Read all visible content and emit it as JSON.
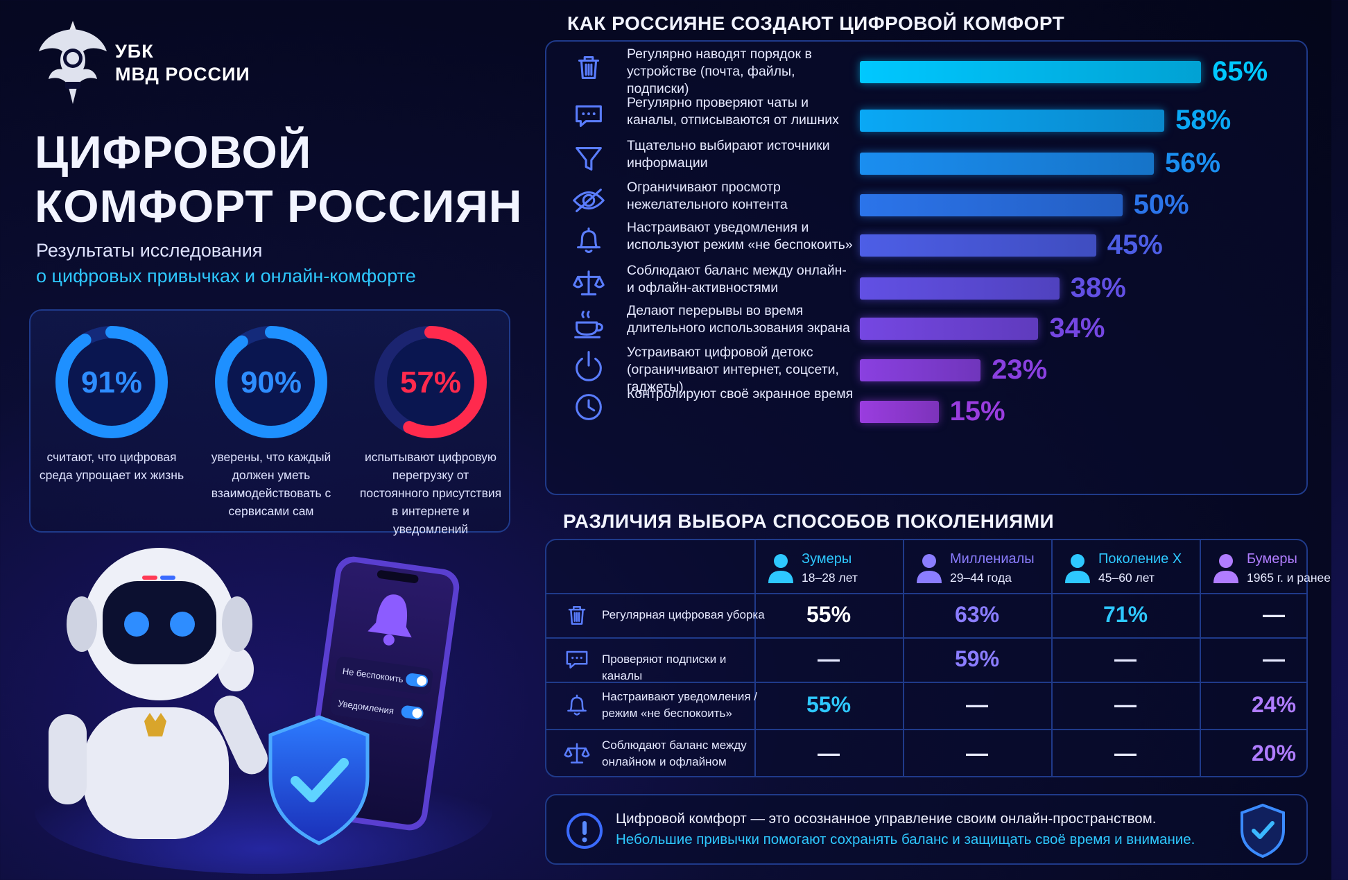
{
  "header": {
    "org_line1": "УБК",
    "org_line2": "МВД РОССИИ",
    "title": "ЦИФРОВОЙ КОМФОРТ РОССИЯН",
    "subtitle_line1": "Результаты исследования",
    "subtitle_line2": "о цифровых привычках и онлайн-комфорте"
  },
  "stats": [
    {
      "value": 91,
      "label": "91%",
      "text": "считают, что цифровая среда упрощает их жизнь",
      "color": "#1e90ff"
    },
    {
      "value": 90,
      "label": "90%",
      "text": "уверены, что каждый должен уметь взаимодействовать с сервисами сам",
      "color": "#1e90ff"
    },
    {
      "value": 57,
      "label": "57%",
      "text": "испытывают цифровую перегрузку от постоянного присутствия в интернете и уведомлений",
      "color": "#ff2a4d"
    }
  ],
  "chart_data": [
    {
      "type": "bar",
      "title": "КАК РОССИЯНЕ СОЗДАЮТ ЦИФРОВОЙ КОМФОРТ",
      "categories": [
        "Регулярно наводят порядок в устройстве (почта, файлы, подписки)",
        "Регулярно проверяют чаты и каналы, отписываются от лишних",
        "Тщательно выбирают источники информации",
        "Ограничивают просмотр нежелательного контента",
        "Настраивают уведомления и используют режим «не беспокоить»",
        "Соблюдают баланс между онлайн- и офлайн-активностями",
        "Делают перерывы во время длительного использования экрана",
        "Устраивают цифровой детокс (ограничивают интернет, соцсети, гаджеты)",
        "Контролируют своё экранное время"
      ],
      "values": [
        65,
        58,
        56,
        50,
        45,
        38,
        34,
        23,
        15
      ],
      "value_labels": [
        "65%",
        "58%",
        "56%",
        "50%",
        "45%",
        "38%",
        "34%",
        "23%",
        "15%"
      ],
      "icons": [
        "trash-icon",
        "chat-icon",
        "filter-icon",
        "eye-icon",
        "bell-icon",
        "scales-icon",
        "cup-icon",
        "power-icon",
        "clock-icon"
      ],
      "colors": [
        "#00c8ff",
        "#0aa8f5",
        "#1a8ef0",
        "#2b74ea",
        "#4d5ee6",
        "#6250e4",
        "#7547e2",
        "#8a40e0",
        "#9a3ddf"
      ],
      "ylim": [
        0,
        70
      ]
    },
    {
      "type": "table",
      "title": "РАЗЛИЧИЯ ВЫБОРА СПОСОБОВ ПОКОЛЕНИЯМИ",
      "columns": [
        {
          "name": "Зумеры",
          "age": "18–28 лет",
          "color": "#2ec8ff"
        },
        {
          "name": "Миллениалы",
          "age": "29–44 года",
          "color": "#8b7dff"
        },
        {
          "name": "Поколение X",
          "age": "45–60 лет",
          "color": "#2ec8ff"
        },
        {
          "name": "Бумеры",
          "age": "1965 г. и ранее",
          "color": "#b07dff"
        }
      ],
      "rows": [
        {
          "label": "Регулярная цифровая уборка",
          "icon": "trash-icon",
          "values": [
            "55%",
            "63%",
            "71%",
            "—"
          ],
          "colors": [
            "#ffffff",
            "#8b7dff",
            "#2ec8ff",
            "#e6e9ff"
          ]
        },
        {
          "label": "Проверяют подписки и каналы",
          "icon": "chat-icon",
          "values": [
            "—",
            "59%",
            "—",
            "—"
          ],
          "colors": [
            "#e6e9ff",
            "#8b7dff",
            "#e6e9ff",
            "#e6e9ff"
          ]
        },
        {
          "label": "Настраивают уведомления / режим «не беспокоить»",
          "icon": "bell-icon",
          "values": [
            "55%",
            "—",
            "—",
            "24%"
          ],
          "colors": [
            "#2ec8ff",
            "#e6e9ff",
            "#e6e9ff",
            "#b07dff"
          ]
        },
        {
          "label": "Соблюдают баланс между онлайном и офлайном",
          "icon": "scales-icon",
          "values": [
            "—",
            "—",
            "—",
            "20%"
          ],
          "colors": [
            "#e6e9ff",
            "#e6e9ff",
            "#e6e9ff",
            "#b07dff"
          ]
        }
      ]
    }
  ],
  "phone": {
    "toggle1": "Не беспокоить",
    "toggle2": "Уведомления"
  },
  "note": {
    "line1": "Цифровой комфорт — это осознанное управление своим онлайн-пространством.",
    "line2": "Небольшие привычки помогают сохранять баланс и защищать своё время и внимание."
  }
}
